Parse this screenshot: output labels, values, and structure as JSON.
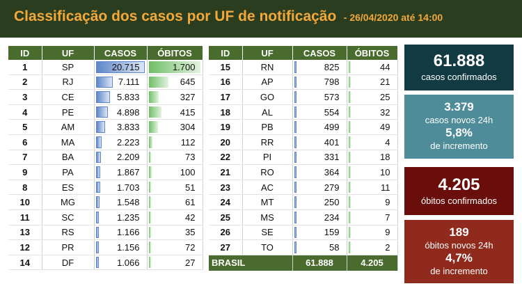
{
  "header": {
    "title": "Classificação dos casos por UF de notificação",
    "date": "- 26/04/2020 até 14:00"
  },
  "table": {
    "columns": [
      "ID",
      "UF",
      "CASOS",
      "ÓBITOS"
    ],
    "left_rows": [
      {
        "id": "1",
        "uf": "SP",
        "casos": "20.715",
        "obitos": "1.700",
        "casos_value": 20715,
        "obitos_value": 1700
      },
      {
        "id": "2",
        "uf": "RJ",
        "casos": "7.111",
        "obitos": "645",
        "casos_value": 7111,
        "obitos_value": 645
      },
      {
        "id": "3",
        "uf": "CE",
        "casos": "5.833",
        "obitos": "327",
        "casos_value": 5833,
        "obitos_value": 327
      },
      {
        "id": "4",
        "uf": "PE",
        "casos": "4.898",
        "obitos": "415",
        "casos_value": 4898,
        "obitos_value": 415
      },
      {
        "id": "5",
        "uf": "AM",
        "casos": "3.833",
        "obitos": "304",
        "casos_value": 3833,
        "obitos_value": 304
      },
      {
        "id": "6",
        "uf": "MA",
        "casos": "2.223",
        "obitos": "112",
        "casos_value": 2223,
        "obitos_value": 112
      },
      {
        "id": "7",
        "uf": "BA",
        "casos": "2.209",
        "obitos": "73",
        "casos_value": 2209,
        "obitos_value": 73
      },
      {
        "id": "9",
        "uf": "PA",
        "casos": "1.867",
        "obitos": "100",
        "casos_value": 1867,
        "obitos_value": 100
      },
      {
        "id": "8",
        "uf": "ES",
        "casos": "1.703",
        "obitos": "51",
        "casos_value": 1703,
        "obitos_value": 51
      },
      {
        "id": "10",
        "uf": "MG",
        "casos": "1.548",
        "obitos": "61",
        "casos_value": 1548,
        "obitos_value": 61
      },
      {
        "id": "11",
        "uf": "SC",
        "casos": "1.235",
        "obitos": "42",
        "casos_value": 1235,
        "obitos_value": 42
      },
      {
        "id": "13",
        "uf": "RS",
        "casos": "1.166",
        "obitos": "35",
        "casos_value": 1166,
        "obitos_value": 35
      },
      {
        "id": "12",
        "uf": "PR",
        "casos": "1.156",
        "obitos": "72",
        "casos_value": 1156,
        "obitos_value": 72
      },
      {
        "id": "14",
        "uf": "DF",
        "casos": "1.066",
        "obitos": "27",
        "casos_value": 1066,
        "obitos_value": 27
      }
    ],
    "right_rows": [
      {
        "id": "15",
        "uf": "RN",
        "casos": "825",
        "obitos": "44",
        "casos_value": 825,
        "obitos_value": 44
      },
      {
        "id": "16",
        "uf": "AP",
        "casos": "798",
        "obitos": "21",
        "casos_value": 798,
        "obitos_value": 21
      },
      {
        "id": "17",
        "uf": "GO",
        "casos": "573",
        "obitos": "25",
        "casos_value": 573,
        "obitos_value": 25
      },
      {
        "id": "18",
        "uf": "AL",
        "casos": "554",
        "obitos": "32",
        "casos_value": 554,
        "obitos_value": 32
      },
      {
        "id": "19",
        "uf": "PB",
        "casos": "499",
        "obitos": "49",
        "casos_value": 499,
        "obitos_value": 49
      },
      {
        "id": "20",
        "uf": "RR",
        "casos": "401",
        "obitos": "4",
        "casos_value": 401,
        "obitos_value": 4
      },
      {
        "id": "22",
        "uf": "PI",
        "casos": "331",
        "obitos": "18",
        "casos_value": 331,
        "obitos_value": 18
      },
      {
        "id": "21",
        "uf": "RO",
        "casos": "364",
        "obitos": "10",
        "casos_value": 364,
        "obitos_value": 10
      },
      {
        "id": "23",
        "uf": "AC",
        "casos": "279",
        "obitos": "11",
        "casos_value": 279,
        "obitos_value": 11
      },
      {
        "id": "24",
        "uf": "MT",
        "casos": "250",
        "obitos": "9",
        "casos_value": 250,
        "obitos_value": 9
      },
      {
        "id": "25",
        "uf": "MS",
        "casos": "234",
        "obitos": "7",
        "casos_value": 234,
        "obitos_value": 7
      },
      {
        "id": "26",
        "uf": "SE",
        "casos": "159",
        "obitos": "9",
        "casos_value": 159,
        "obitos_value": 9
      },
      {
        "id": "27",
        "uf": "TO",
        "casos": "58",
        "obitos": "2",
        "casos_value": 58,
        "obitos_value": 2
      }
    ],
    "total": {
      "label": "BRASIL",
      "casos": "61.888",
      "obitos": "4.205"
    }
  },
  "cards": {
    "confirmados": {
      "value": "61.888",
      "label": "casos confirmados"
    },
    "novos": {
      "value": "3.379",
      "label": "casos novos 24h",
      "pct": "5,8%",
      "pct_label": "de incremento"
    },
    "obitos": {
      "value": "4.205",
      "label": "óbitos confirmados"
    },
    "obitos_novos": {
      "value": "189",
      "label": "óbitos novos 24h",
      "pct": "4,7%",
      "pct_label": "de incremento"
    }
  },
  "colors": {
    "header_bg": "#2a3d1e",
    "title": "#f2a83b",
    "table_header": "#496b2d",
    "casos_bar": "#5f86c8",
    "obitos_bar": "#6fbf66",
    "card_confirmados": "#123a42",
    "card_novos": "#4f8c99",
    "card_obitos": "#6a0e0b",
    "card_obitos_novos": "#8f2a1d"
  }
}
